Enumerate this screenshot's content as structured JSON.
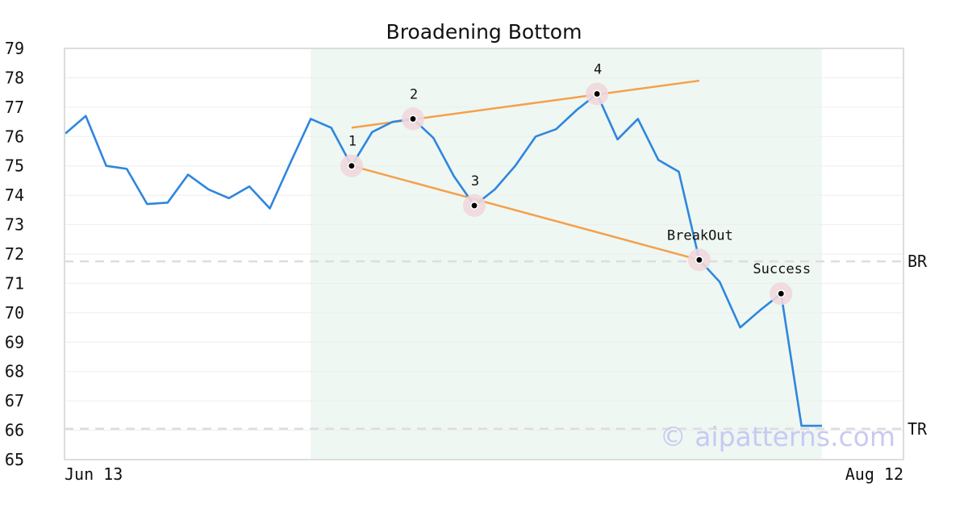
{
  "chart_data": {
    "type": "line",
    "title": "Broadening Bottom",
    "xlabel": "",
    "ylabel": "",
    "ylim": [
      65,
      79
    ],
    "yticks": [
      65,
      66,
      67,
      68,
      69,
      70,
      71,
      72,
      73,
      74,
      75,
      76,
      77,
      78,
      79
    ],
    "x_labels": [
      "Jun 13",
      "Aug 12"
    ],
    "x_index_range": [
      0,
      41
    ],
    "grid": true,
    "colors": {
      "price": "#2e86de",
      "trendline": "#f5a04a",
      "pattern_region": "#eef7f2",
      "reference": "#dddddd",
      "marker_halo": "#f0d7dd",
      "marker": "#000000",
      "grid": "#eeeeee",
      "frame": "#dddddd"
    },
    "series": [
      {
        "values": [
          76.1,
          76.7,
          75.0,
          74.9,
          73.7,
          73.75,
          74.7,
          74.2,
          73.9,
          74.3,
          73.55,
          75.1,
          76.6,
          76.3,
          75.0,
          76.15,
          76.5,
          76.6,
          75.95,
          74.65,
          73.65,
          74.2,
          75.0,
          76.0,
          76.25,
          76.9,
          77.45,
          75.9,
          76.6,
          75.2,
          74.8,
          71.8,
          71.05,
          69.5,
          70.1,
          70.65,
          66.15,
          66.15
        ]
      }
    ],
    "pattern_region": {
      "start_index": 12,
      "end_index": 37
    },
    "trendlines": [
      {
        "from": [
          14,
          76.3
        ],
        "to": [
          31,
          77.9
        ]
      },
      {
        "from": [
          14,
          75.0
        ],
        "to": [
          31,
          71.8
        ]
      }
    ],
    "points": [
      {
        "label": "1",
        "index": 14,
        "value": 75.0,
        "label_pos": "above"
      },
      {
        "label": "2",
        "index": 17,
        "value": 76.6,
        "label_pos": "above"
      },
      {
        "label": "3",
        "index": 20,
        "value": 73.65,
        "label_pos": "above"
      },
      {
        "label": "4",
        "index": 26,
        "value": 77.45,
        "label_pos": "above"
      },
      {
        "label": "BreakOut",
        "index": 31,
        "value": 71.8,
        "label_pos": "above"
      },
      {
        "label": "Success",
        "index": 35,
        "value": 70.65,
        "label_pos": "above"
      }
    ],
    "reference_lines": [
      {
        "label": "BR",
        "value": 71.75
      },
      {
        "label": "TR",
        "value": 66.05
      }
    ],
    "watermark": "© aipatterns.com"
  }
}
